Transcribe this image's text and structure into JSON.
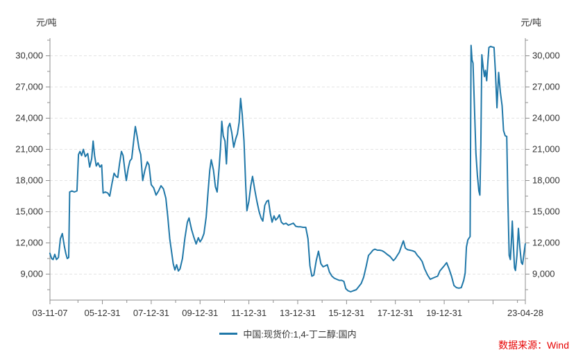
{
  "source_text": "数据来源：Wind",
  "chart_data": {
    "type": "line",
    "title": "",
    "unit_left": "元/吨",
    "unit_right": "元/吨",
    "grid": "horizontal-dashed",
    "legend_position": "bottom-center",
    "colors": {
      "series": "#1f77a8",
      "axis": "#8c8c8c",
      "gridline": "#e3e3e3",
      "tick_text": "#333333",
      "source_text": "#e60000"
    },
    "x_axis": {
      "range": [
        2003.853,
        2023.323
      ],
      "major_ticks": [
        {
          "t": 2003.853,
          "label": "03-11-07"
        },
        {
          "t": 2006.0,
          "label": "05-12-31"
        },
        {
          "t": 2008.0,
          "label": "07-12-31"
        },
        {
          "t": 2010.0,
          "label": "09-12-31"
        },
        {
          "t": 2012.0,
          "label": "11-12-31"
        },
        {
          "t": 2014.0,
          "label": "13-12-31"
        },
        {
          "t": 2016.0,
          "label": "15-12-31"
        },
        {
          "t": 2018.0,
          "label": "17-12-31"
        },
        {
          "t": 2020.0,
          "label": "19-12-31"
        },
        {
          "t": 2022.0,
          "label": ""
        },
        {
          "t": 2023.323,
          "label": "23-04-28"
        }
      ],
      "minor_ticks": [
        2005,
        2007,
        2009,
        2011,
        2013,
        2015,
        2017,
        2019,
        2021,
        2023
      ]
    },
    "y_axis": {
      "range": [
        6500,
        31700
      ],
      "major_ticks": [
        9000,
        12000,
        15000,
        18000,
        21000,
        24000,
        27000,
        30000
      ],
      "minor_step": 1500,
      "mirror_right": true
    },
    "series": [
      {
        "name": "中国:现货价:1,4-丁二醇:国内",
        "color": "#1f77a8",
        "points": [
          [
            2003.85,
            11000
          ],
          [
            2003.92,
            10500
          ],
          [
            2003.98,
            10400
          ],
          [
            2004.05,
            10900
          ],
          [
            2004.12,
            10400
          ],
          [
            2004.2,
            10600
          ],
          [
            2004.28,
            12400
          ],
          [
            2004.36,
            12900
          ],
          [
            2004.44,
            11700
          ],
          [
            2004.5,
            11000
          ],
          [
            2004.56,
            10500
          ],
          [
            2004.62,
            10600
          ],
          [
            2004.66,
            16900
          ],
          [
            2004.75,
            17000
          ],
          [
            2004.85,
            16900
          ],
          [
            2004.96,
            17000
          ],
          [
            2005.02,
            20500
          ],
          [
            2005.08,
            20800
          ],
          [
            2005.15,
            20400
          ],
          [
            2005.22,
            21000
          ],
          [
            2005.3,
            20300
          ],
          [
            2005.4,
            20600
          ],
          [
            2005.48,
            19300
          ],
          [
            2005.56,
            20100
          ],
          [
            2005.62,
            21800
          ],
          [
            2005.68,
            20400
          ],
          [
            2005.75,
            19400
          ],
          [
            2005.82,
            19700
          ],
          [
            2005.9,
            19300
          ],
          [
            2005.97,
            19500
          ],
          [
            2006.03,
            16800
          ],
          [
            2006.12,
            16900
          ],
          [
            2006.22,
            16800
          ],
          [
            2006.3,
            16500
          ],
          [
            2006.4,
            17800
          ],
          [
            2006.48,
            18700
          ],
          [
            2006.56,
            18400
          ],
          [
            2006.63,
            18300
          ],
          [
            2006.7,
            19600
          ],
          [
            2006.78,
            20800
          ],
          [
            2006.85,
            20400
          ],
          [
            2006.92,
            19000
          ],
          [
            2006.98,
            18000
          ],
          [
            2007.06,
            19200
          ],
          [
            2007.13,
            19900
          ],
          [
            2007.2,
            20100
          ],
          [
            2007.28,
            21800
          ],
          [
            2007.35,
            23200
          ],
          [
            2007.42,
            22300
          ],
          [
            2007.5,
            21100
          ],
          [
            2007.57,
            20500
          ],
          [
            2007.65,
            18000
          ],
          [
            2007.74,
            19000
          ],
          [
            2007.84,
            19800
          ],
          [
            2007.91,
            19500
          ],
          [
            2008.0,
            17600
          ],
          [
            2008.1,
            17300
          ],
          [
            2008.2,
            16600
          ],
          [
            2008.3,
            17000
          ],
          [
            2008.4,
            17500
          ],
          [
            2008.5,
            17200
          ],
          [
            2008.6,
            16300
          ],
          [
            2008.68,
            14500
          ],
          [
            2008.76,
            12400
          ],
          [
            2008.83,
            11200
          ],
          [
            2008.9,
            10000
          ],
          [
            2008.97,
            9400
          ],
          [
            2009.04,
            9900
          ],
          [
            2009.11,
            9300
          ],
          [
            2009.18,
            9500
          ],
          [
            2009.28,
            10500
          ],
          [
            2009.38,
            12500
          ],
          [
            2009.48,
            14000
          ],
          [
            2009.55,
            14400
          ],
          [
            2009.65,
            13300
          ],
          [
            2009.74,
            12600
          ],
          [
            2009.84,
            11900
          ],
          [
            2009.93,
            12500
          ],
          [
            2010.0,
            12100
          ],
          [
            2010.08,
            12400
          ],
          [
            2010.16,
            12900
          ],
          [
            2010.25,
            14500
          ],
          [
            2010.33,
            17000
          ],
          [
            2010.4,
            19000
          ],
          [
            2010.46,
            20000
          ],
          [
            2010.55,
            19000
          ],
          [
            2010.63,
            17400
          ],
          [
            2010.7,
            16900
          ],
          [
            2010.78,
            19200
          ],
          [
            2010.84,
            21200
          ],
          [
            2010.89,
            23700
          ],
          [
            2010.95,
            22300
          ],
          [
            2011.02,
            21800
          ],
          [
            2011.08,
            19600
          ],
          [
            2011.15,
            23100
          ],
          [
            2011.22,
            23500
          ],
          [
            2011.3,
            22600
          ],
          [
            2011.38,
            21200
          ],
          [
            2011.46,
            22000
          ],
          [
            2011.53,
            22500
          ],
          [
            2011.6,
            23600
          ],
          [
            2011.66,
            25900
          ],
          [
            2011.73,
            24300
          ],
          [
            2011.8,
            21800
          ],
          [
            2011.87,
            17500
          ],
          [
            2011.92,
            15100
          ],
          [
            2012.0,
            16000
          ],
          [
            2012.08,
            17500
          ],
          [
            2012.15,
            18400
          ],
          [
            2012.25,
            17000
          ],
          [
            2012.33,
            16000
          ],
          [
            2012.42,
            15000
          ],
          [
            2012.5,
            14400
          ],
          [
            2012.57,
            14100
          ],
          [
            2012.65,
            15600
          ],
          [
            2012.73,
            16000
          ],
          [
            2012.8,
            16100
          ],
          [
            2012.88,
            14800
          ],
          [
            2012.95,
            14000
          ],
          [
            2013.03,
            14600
          ],
          [
            2013.1,
            14200
          ],
          [
            2013.18,
            14400
          ],
          [
            2013.25,
            14700
          ],
          [
            2013.33,
            14000
          ],
          [
            2013.42,
            13800
          ],
          [
            2013.52,
            13900
          ],
          [
            2013.62,
            13700
          ],
          [
            2013.72,
            13800
          ],
          [
            2013.82,
            13900
          ],
          [
            2013.92,
            13600
          ],
          [
            2014.02,
            13550
          ],
          [
            2014.12,
            13550
          ],
          [
            2014.22,
            13500
          ],
          [
            2014.33,
            13500
          ],
          [
            2014.42,
            12400
          ],
          [
            2014.5,
            9800
          ],
          [
            2014.58,
            8800
          ],
          [
            2014.66,
            8900
          ],
          [
            2014.76,
            10300
          ],
          [
            2014.85,
            11200
          ],
          [
            2014.95,
            10000
          ],
          [
            2015.04,
            9700
          ],
          [
            2015.13,
            9800
          ],
          [
            2015.21,
            9900
          ],
          [
            2015.3,
            9200
          ],
          [
            2015.4,
            8800
          ],
          [
            2015.5,
            8600
          ],
          [
            2015.6,
            8500
          ],
          [
            2015.7,
            8400
          ],
          [
            2015.8,
            8400
          ],
          [
            2015.89,
            8300
          ],
          [
            2015.97,
            7600
          ],
          [
            2016.06,
            7400
          ],
          [
            2016.17,
            7300
          ],
          [
            2016.28,
            7400
          ],
          [
            2016.4,
            7500
          ],
          [
            2016.5,
            7800
          ],
          [
            2016.6,
            8100
          ],
          [
            2016.7,
            8700
          ],
          [
            2016.8,
            9700
          ],
          [
            2016.9,
            10800
          ],
          [
            2016.98,
            11000
          ],
          [
            2017.08,
            11300
          ],
          [
            2017.16,
            11400
          ],
          [
            2017.26,
            11300
          ],
          [
            2017.36,
            11300
          ],
          [
            2017.46,
            11250
          ],
          [
            2017.56,
            11100
          ],
          [
            2017.66,
            10900
          ],
          [
            2017.78,
            10700
          ],
          [
            2017.92,
            10300
          ],
          [
            2018.0,
            10500
          ],
          [
            2018.08,
            10800
          ],
          [
            2018.16,
            11100
          ],
          [
            2018.25,
            11700
          ],
          [
            2018.33,
            12200
          ],
          [
            2018.41,
            11500
          ],
          [
            2018.5,
            11350
          ],
          [
            2018.6,
            11300
          ],
          [
            2018.7,
            11250
          ],
          [
            2018.8,
            11150
          ],
          [
            2018.9,
            10800
          ],
          [
            2019.0,
            10550
          ],
          [
            2019.1,
            10200
          ],
          [
            2019.2,
            9500
          ],
          [
            2019.32,
            8900
          ],
          [
            2019.43,
            8500
          ],
          [
            2019.52,
            8600
          ],
          [
            2019.62,
            8700
          ],
          [
            2019.73,
            8800
          ],
          [
            2019.82,
            9300
          ],
          [
            2019.91,
            9550
          ],
          [
            2020.0,
            9800
          ],
          [
            2020.1,
            10100
          ],
          [
            2020.2,
            9500
          ],
          [
            2020.3,
            8800
          ],
          [
            2020.4,
            7900
          ],
          [
            2020.5,
            7700
          ],
          [
            2020.6,
            7650
          ],
          [
            2020.7,
            7700
          ],
          [
            2020.8,
            8400
          ],
          [
            2020.86,
            9100
          ],
          [
            2020.91,
            11600
          ],
          [
            2020.97,
            12300
          ],
          [
            2021.04,
            12550
          ],
          [
            2021.06,
            12600
          ],
          [
            2021.1,
            31000
          ],
          [
            2021.14,
            29600
          ],
          [
            2021.18,
            29300
          ],
          [
            2021.24,
            25000
          ],
          [
            2021.3,
            20600
          ],
          [
            2021.36,
            18500
          ],
          [
            2021.42,
            17000
          ],
          [
            2021.46,
            16600
          ],
          [
            2021.5,
            21500
          ],
          [
            2021.54,
            30100
          ],
          [
            2021.6,
            28800
          ],
          [
            2021.65,
            28000
          ],
          [
            2021.69,
            28600
          ],
          [
            2021.74,
            27600
          ],
          [
            2021.79,
            29500
          ],
          [
            2021.83,
            30800
          ],
          [
            2021.9,
            30900
          ],
          [
            2021.97,
            30850
          ],
          [
            2022.04,
            30800
          ],
          [
            2022.1,
            28300
          ],
          [
            2022.16,
            25000
          ],
          [
            2022.23,
            28400
          ],
          [
            2022.3,
            26500
          ],
          [
            2022.37,
            25200
          ],
          [
            2022.43,
            22800
          ],
          [
            2022.5,
            22300
          ],
          [
            2022.56,
            22250
          ],
          [
            2022.61,
            16000
          ],
          [
            2022.66,
            10800
          ],
          [
            2022.71,
            10400
          ],
          [
            2022.75,
            12000
          ],
          [
            2022.79,
            14100
          ],
          [
            2022.84,
            11500
          ],
          [
            2022.88,
            9600
          ],
          [
            2022.92,
            9350
          ],
          [
            2022.98,
            10800
          ],
          [
            2023.04,
            13400
          ],
          [
            2023.1,
            11500
          ],
          [
            2023.16,
            10100
          ],
          [
            2023.21,
            9950
          ],
          [
            2023.27,
            11000
          ],
          [
            2023.32,
            11900
          ]
        ]
      }
    ]
  }
}
